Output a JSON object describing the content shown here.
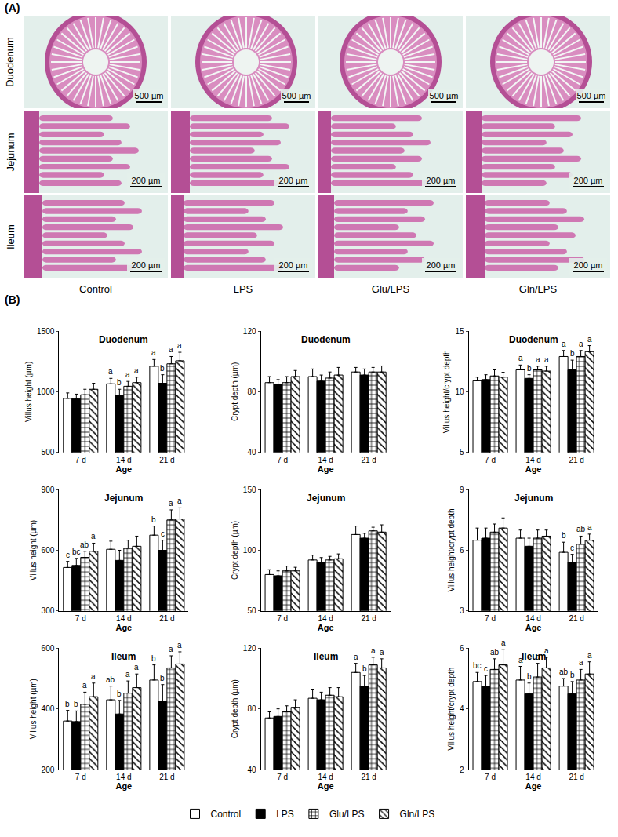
{
  "panel_labels": [
    "(A)",
    "(B)"
  ],
  "histology": {
    "rows": [
      {
        "label": "Duodenum",
        "scale_bar": "500 µm"
      },
      {
        "label": "Jejunum",
        "scale_bar": "200 µm"
      },
      {
        "label": "Ileum",
        "scale_bar": "200 µm"
      }
    ],
    "columns": [
      "Control",
      "LPS",
      "Glu/LPS",
      "Gln/LPS"
    ]
  },
  "chart_data": [
    {
      "type": "bar",
      "title": "Duodenum",
      "x_label": "Age",
      "y_label": "Villus height (µm)",
      "categories": [
        "7 d",
        "14 d",
        "21 d"
      ],
      "ylim": [
        500,
        1500
      ],
      "yticks": [
        500,
        1000,
        1500
      ],
      "legend": "bottom",
      "series": [
        {
          "name": "Control",
          "color": "#ffffff",
          "marker": "solid",
          "values": [
            945,
            1065,
            1210
          ],
          "errors": [
            45,
            45,
            55
          ],
          "letters": [
            null,
            "a",
            "a"
          ]
        },
        {
          "name": "LPS",
          "color": "#000000",
          "marker": "solid",
          "values": [
            940,
            970,
            1070
          ],
          "errors": [
            40,
            50,
            70
          ],
          "letters": [
            null,
            "b",
            "b"
          ]
        },
        {
          "name": "Glu/LPS",
          "color": "#ffffff",
          "marker": "grid",
          "values": [
            975,
            1045,
            1230
          ],
          "errors": [
            45,
            40,
            60
          ],
          "letters": [
            null,
            "a",
            "a"
          ]
        },
        {
          "name": "Gln/LPS",
          "color": "#ffffff",
          "marker": "diagonal",
          "values": [
            1020,
            1075,
            1255
          ],
          "errors": [
            50,
            45,
            70
          ],
          "letters": [
            null,
            "a",
            "a"
          ]
        }
      ]
    },
    {
      "type": "bar",
      "title": "Duodenum",
      "x_label": "Age",
      "y_label": "Crypt depth (µm)",
      "categories": [
        "7 d",
        "14 d",
        "21 d"
      ],
      "ylim": [
        40,
        120
      ],
      "yticks": [
        40,
        80,
        120
      ],
      "series": [
        {
          "name": "Control",
          "color": "#ffffff",
          "marker": "solid",
          "values": [
            86,
            90,
            93
          ],
          "errors": [
            4,
            5,
            3
          ],
          "letters": [
            null,
            null,
            null
          ]
        },
        {
          "name": "LPS",
          "color": "#000000",
          "marker": "solid",
          "values": [
            85,
            87,
            91
          ],
          "errors": [
            3,
            4,
            4
          ],
          "letters": [
            null,
            null,
            null
          ]
        },
        {
          "name": "Glu/LPS",
          "color": "#ffffff",
          "marker": "grid",
          "values": [
            86,
            89,
            93
          ],
          "errors": [
            4,
            4,
            3
          ],
          "letters": [
            null,
            null,
            null
          ]
        },
        {
          "name": "Gln/LPS",
          "color": "#ffffff",
          "marker": "diagonal",
          "values": [
            90,
            91,
            93
          ],
          "errors": [
            4,
            5,
            4
          ],
          "letters": [
            null,
            null,
            null
          ]
        }
      ]
    },
    {
      "type": "bar",
      "title": "Duodenum",
      "x_label": "Age",
      "y_label": "Villus height/crypt depth",
      "categories": [
        "7 d",
        "14 d",
        "21 d"
      ],
      "ylim": [
        5,
        15
      ],
      "yticks": [
        5,
        10,
        15
      ],
      "series": [
        {
          "name": "Control",
          "color": "#ffffff",
          "marker": "solid",
          "values": [
            10.9,
            11.8,
            12.9
          ],
          "errors": [
            0.3,
            0.4,
            0.5
          ],
          "letters": [
            null,
            "a",
            "a"
          ]
        },
        {
          "name": "LPS",
          "color": "#000000",
          "marker": "solid",
          "values": [
            11.0,
            11.1,
            11.8
          ],
          "errors": [
            0.4,
            0.3,
            0.8
          ],
          "letters": [
            null,
            "b",
            "b"
          ]
        },
        {
          "name": "Glu/LPS",
          "color": "#ffffff",
          "marker": "grid",
          "values": [
            11.3,
            11.8,
            12.9
          ],
          "errors": [
            0.5,
            0.3,
            0.5
          ],
          "letters": [
            null,
            "a",
            "a"
          ]
        },
        {
          "name": "Gln/LPS",
          "color": "#ffffff",
          "marker": "diagonal",
          "values": [
            11.2,
            11.7,
            13.3
          ],
          "errors": [
            0.4,
            0.4,
            0.5
          ],
          "letters": [
            null,
            "a",
            "a"
          ]
        }
      ]
    },
    {
      "type": "bar",
      "title": "Jejunum",
      "x_label": "Age",
      "y_label": "Villus height (µm)",
      "categories": [
        "7 d",
        "14 d",
        "21 d"
      ],
      "ylim": [
        300,
        900
      ],
      "yticks": [
        300,
        600,
        900
      ],
      "series": [
        {
          "name": "Control",
          "color": "#ffffff",
          "marker": "solid",
          "values": [
            515,
            605,
            675
          ],
          "errors": [
            30,
            40,
            45
          ],
          "letters": [
            "c",
            null,
            "b"
          ]
        },
        {
          "name": "LPS",
          "color": "#000000",
          "marker": "solid",
          "values": [
            525,
            550,
            600
          ],
          "errors": [
            35,
            50,
            50
          ],
          "letters": [
            "bc",
            null,
            "c"
          ]
        },
        {
          "name": "Glu/LPS",
          "color": "#ffffff",
          "marker": "grid",
          "values": [
            565,
            610,
            750
          ],
          "errors": [
            30,
            40,
            50
          ],
          "letters": [
            "ab",
            null,
            "a"
          ]
        },
        {
          "name": "Gln/LPS",
          "color": "#ffffff",
          "marker": "diagonal",
          "values": [
            595,
            620,
            755
          ],
          "errors": [
            40,
            50,
            55
          ],
          "letters": [
            "a",
            null,
            "a"
          ]
        }
      ]
    },
    {
      "type": "bar",
      "title": "Jejunum",
      "x_label": "Age",
      "y_label": "Crypt depth (µm)",
      "categories": [
        "7 d",
        "14 d",
        "21 d"
      ],
      "ylim": [
        50,
        150
      ],
      "yticks": [
        50,
        100,
        150
      ],
      "series": [
        {
          "name": "Control",
          "color": "#ffffff",
          "marker": "solid",
          "values": [
            80,
            92,
            113
          ],
          "errors": [
            4,
            4,
            7
          ],
          "letters": [
            null,
            null,
            null
          ]
        },
        {
          "name": "LPS",
          "color": "#000000",
          "marker": "solid",
          "values": [
            79,
            90,
            110
          ],
          "errors": [
            4,
            4,
            4
          ],
          "letters": [
            null,
            null,
            null
          ]
        },
        {
          "name": "Glu/LPS",
          "color": "#ffffff",
          "marker": "grid",
          "values": [
            83,
            92,
            116
          ],
          "errors": [
            4,
            3,
            3
          ],
          "letters": [
            null,
            null,
            null
          ]
        },
        {
          "name": "Gln/LPS",
          "color": "#ffffff",
          "marker": "diagonal",
          "values": [
            83,
            93,
            115
          ],
          "errors": [
            3,
            4,
            6
          ],
          "letters": [
            null,
            null,
            null
          ]
        }
      ]
    },
    {
      "type": "bar",
      "title": "Jejunum",
      "x_label": "Age",
      "y_label": "Villus height/crypt depth",
      "categories": [
        "7 d",
        "14 d",
        "21 d"
      ],
      "ylim": [
        3,
        9
      ],
      "yticks": [
        3,
        6,
        9
      ],
      "series": [
        {
          "name": "Control",
          "color": "#ffffff",
          "marker": "solid",
          "values": [
            6.5,
            6.6,
            5.9
          ],
          "errors": [
            0.6,
            0.4,
            0.5
          ],
          "letters": [
            null,
            null,
            "b"
          ]
        },
        {
          "name": "LPS",
          "color": "#000000",
          "marker": "solid",
          "values": [
            6.6,
            6.2,
            5.4
          ],
          "errors": [
            0.5,
            0.4,
            0.4
          ],
          "letters": [
            null,
            null,
            "c"
          ]
        },
        {
          "name": "Glu/LPS",
          "color": "#ffffff",
          "marker": "grid",
          "values": [
            6.9,
            6.6,
            6.3
          ],
          "errors": [
            0.4,
            0.4,
            0.4
          ],
          "letters": [
            null,
            null,
            "ab"
          ]
        },
        {
          "name": "Gln/LPS",
          "color": "#ffffff",
          "marker": "diagonal",
          "values": [
            7.1,
            6.7,
            6.5
          ],
          "errors": [
            0.5,
            0.3,
            0.3
          ],
          "letters": [
            null,
            null,
            "a"
          ]
        }
      ]
    },
    {
      "type": "bar",
      "title": "Ileum",
      "x_label": "Age",
      "y_label": "Villus height (µm)",
      "categories": [
        "7 d",
        "14 d",
        "21 d"
      ],
      "ylim": [
        200,
        600
      ],
      "yticks": [
        200,
        400,
        600
      ],
      "series": [
        {
          "name": "Control",
          "color": "#ffffff",
          "marker": "solid",
          "values": [
            360,
            430,
            495
          ],
          "errors": [
            35,
            45,
            50
          ],
          "letters": [
            "b",
            "ab",
            "b"
          ]
        },
        {
          "name": "LPS",
          "color": "#000000",
          "marker": "solid",
          "values": [
            358,
            383,
            425
          ],
          "errors": [
            35,
            45,
            55
          ],
          "letters": [
            "b",
            "b",
            "b"
          ]
        },
        {
          "name": "Glu/LPS",
          "color": "#ffffff",
          "marker": "grid",
          "values": [
            415,
            452,
            535
          ],
          "errors": [
            40,
            40,
            40
          ],
          "letters": [
            "a",
            "a",
            "a"
          ]
        },
        {
          "name": "Gln/LPS",
          "color": "#ffffff",
          "marker": "diagonal",
          "values": [
            440,
            470,
            548
          ],
          "errors": [
            45,
            45,
            40
          ],
          "letters": [
            "a",
            "a",
            "a"
          ]
        }
      ]
    },
    {
      "type": "bar",
      "title": "Ileum",
      "x_label": "Age",
      "y_label": "Crypt depth (µm)",
      "categories": [
        "7 d",
        "14 d",
        "21 d"
      ],
      "ylim": [
        40,
        120
      ],
      "yticks": [
        40,
        80,
        120
      ],
      "series": [
        {
          "name": "Control",
          "color": "#ffffff",
          "marker": "solid",
          "values": [
            74,
            87,
            104
          ],
          "errors": [
            4,
            6,
            6
          ],
          "letters": [
            null,
            null,
            "a"
          ]
        },
        {
          "name": "LPS",
          "color": "#000000",
          "marker": "solid",
          "values": [
            75,
            86,
            95
          ],
          "errors": [
            5,
            5,
            7
          ],
          "letters": [
            null,
            null,
            "b"
          ]
        },
        {
          "name": "Glu/LPS",
          "color": "#ffffff",
          "marker": "grid",
          "values": [
            78,
            89,
            109
          ],
          "errors": [
            4,
            5,
            5
          ],
          "letters": [
            null,
            null,
            "a"
          ]
        },
        {
          "name": "Gln/LPS",
          "color": "#ffffff",
          "marker": "diagonal",
          "values": [
            81,
            88,
            107
          ],
          "errors": [
            5,
            6,
            6
          ],
          "letters": [
            null,
            null,
            "a"
          ]
        }
      ]
    },
    {
      "type": "bar",
      "title": "Ileum",
      "x_label": "Age",
      "y_label": "Villus height/crypt depth",
      "categories": [
        "7 d",
        "14 d",
        "21 d"
      ],
      "ylim": [
        2,
        6
      ],
      "yticks": [
        2,
        4,
        6
      ],
      "series": [
        {
          "name": "Control",
          "color": "#ffffff",
          "marker": "solid",
          "values": [
            4.9,
            4.95,
            4.75
          ],
          "errors": [
            0.3,
            0.45,
            0.25
          ],
          "letters": [
            "bc",
            "a",
            "ab"
          ]
        },
        {
          "name": "LPS",
          "color": "#000000",
          "marker": "solid",
          "values": [
            4.75,
            4.5,
            4.5
          ],
          "errors": [
            0.35,
            0.35,
            0.4
          ],
          "letters": [
            "c",
            "b",
            "b"
          ]
        },
        {
          "name": "Glu/LPS",
          "color": "#ffffff",
          "marker": "grid",
          "values": [
            5.3,
            5.05,
            4.95
          ],
          "errors": [
            0.35,
            0.45,
            0.35
          ],
          "letters": [
            "ab",
            "a",
            "a"
          ]
        },
        {
          "name": "Gln/LPS",
          "color": "#ffffff",
          "marker": "diagonal",
          "values": [
            5.45,
            5.35,
            5.15
          ],
          "errors": [
            0.5,
            0.35,
            0.4
          ],
          "letters": [
            "a",
            "a",
            "a"
          ]
        }
      ]
    }
  ]
}
